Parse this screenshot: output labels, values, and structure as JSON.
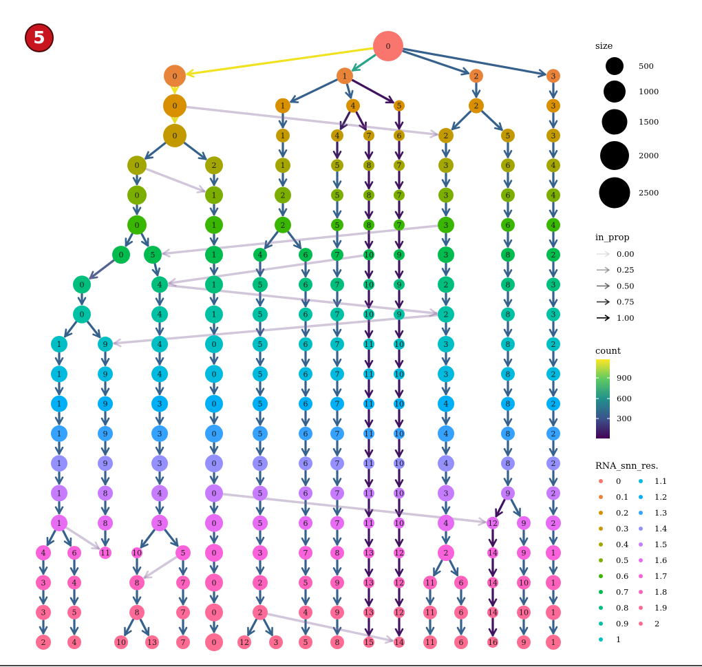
{
  "badge": "5",
  "diagram": {
    "type": "clustering-tree",
    "levels": [
      "0",
      "0.1",
      "0.2",
      "0.3",
      "0.4",
      "0.5",
      "0.6",
      "0.7",
      "0.8",
      "0.9",
      "1",
      "1.1",
      "1.2",
      "1.3",
      "1.4",
      "1.5",
      "1.6",
      "1.7",
      "1.8",
      "1.9",
      "2"
    ],
    "rows": [
      [
        "0"
      ],
      [
        "0",
        "1",
        "2",
        "3"
      ],
      [
        "0",
        "1",
        "4",
        "5",
        "2",
        "3"
      ],
      [
        "0",
        "1",
        "4",
        "7",
        "6",
        "2",
        "5",
        "3"
      ],
      [
        "0",
        "2",
        "1",
        "5",
        "8",
        "7",
        "3",
        "6",
        "4"
      ],
      [
        "0",
        "1",
        "2",
        "5",
        "8",
        "7",
        "3",
        "6",
        "4"
      ],
      [
        "0",
        "1",
        "2",
        "5",
        "8",
        "7",
        "3",
        "6",
        "4"
      ],
      [
        "0",
        "5",
        "1",
        "4",
        "6",
        "7",
        "10",
        "9",
        "3",
        "8",
        "2"
      ],
      [
        "0",
        "4",
        "1",
        "5",
        "6",
        "7",
        "10",
        "9",
        "2",
        "8",
        "3"
      ],
      [
        "0",
        "4",
        "1",
        "5",
        "6",
        "7",
        "10",
        "9",
        "2",
        "8",
        "3"
      ],
      [
        "1",
        "9",
        "4",
        "0",
        "5",
        "6",
        "7",
        "11",
        "10",
        "3",
        "8",
        "2"
      ],
      [
        "1",
        "9",
        "4",
        "0",
        "5",
        "6",
        "7",
        "11",
        "10",
        "3",
        "8",
        "2"
      ],
      [
        "1",
        "9",
        "3",
        "0",
        "5",
        "6",
        "7",
        "11",
        "10",
        "4",
        "8",
        "2"
      ],
      [
        "1",
        "9",
        "3",
        "0",
        "5",
        "6",
        "7",
        "11",
        "10",
        "4",
        "8",
        "2"
      ],
      [
        "1",
        "9",
        "3",
        "0",
        "5",
        "6",
        "7",
        "11",
        "10",
        "4",
        "8",
        "2"
      ],
      [
        "1",
        "8",
        "4",
        "0",
        "5",
        "6",
        "7",
        "11",
        "10",
        "3",
        "9",
        "2"
      ],
      [
        "1",
        "8",
        "3",
        "0",
        "5",
        "6",
        "7",
        "11",
        "10",
        "4",
        "12",
        "9",
        "2"
      ],
      [
        "4",
        "6",
        "11",
        "10",
        "5",
        "0",
        "3",
        "7",
        "8",
        "13",
        "12",
        "2",
        "14",
        "9",
        "1"
      ],
      [
        "3",
        "4",
        "8",
        "7",
        "0",
        "2",
        "5",
        "9",
        "13",
        "12",
        "11",
        "6",
        "14",
        "10",
        "1"
      ],
      [
        "3",
        "5",
        "8",
        "7",
        "0",
        "2",
        "4",
        "9",
        "13",
        "12",
        "11",
        "6",
        "14",
        "10",
        "1"
      ],
      [
        "2",
        "4",
        "10",
        "13",
        "7",
        "0",
        "12",
        "3",
        "5",
        "8",
        "15",
        "14",
        "11",
        "6",
        "16",
        "9",
        "1"
      ]
    ]
  },
  "legend": {
    "size": {
      "title": "size",
      "values": [
        "500",
        "1000",
        "1500",
        "2000",
        "2500"
      ]
    },
    "in_prop": {
      "title": "in_prop",
      "values": [
        "0.00",
        "0.25",
        "0.50",
        "0.75",
        "1.00"
      ]
    },
    "count": {
      "title": "count",
      "ticks": [
        "900",
        "600",
        "300"
      ]
    },
    "res": {
      "title": "RNA_snn_res.",
      "col1": [
        "0",
        "0.1",
        "0.2",
        "0.3",
        "0.4",
        "0.5",
        "0.6",
        "0.7",
        "0.8",
        "0.9",
        "1"
      ],
      "col2": [
        "1.1",
        "1.2",
        "1.3",
        "1.4",
        "1.5",
        "1.6",
        "1.7",
        "1.8",
        "1.9",
        "2"
      ]
    }
  },
  "colors": {
    "levels": [
      "#f8766d",
      "#e8833a",
      "#d89000",
      "#c29a00",
      "#a3a500",
      "#7cae00",
      "#39b600",
      "#00bb4e",
      "#00bf7d",
      "#00c1a3",
      "#00bfc4",
      "#00bae0",
      "#00b0f6",
      "#35a2ff",
      "#9590ff",
      "#c77cff",
      "#e76bf3",
      "#fa62db",
      "#ff62bc",
      "#ff6a98",
      "#ff6c91"
    ],
    "viridis_low": "#440154",
    "viridis_mid": "#21918c",
    "viridis_high": "#fde725"
  }
}
